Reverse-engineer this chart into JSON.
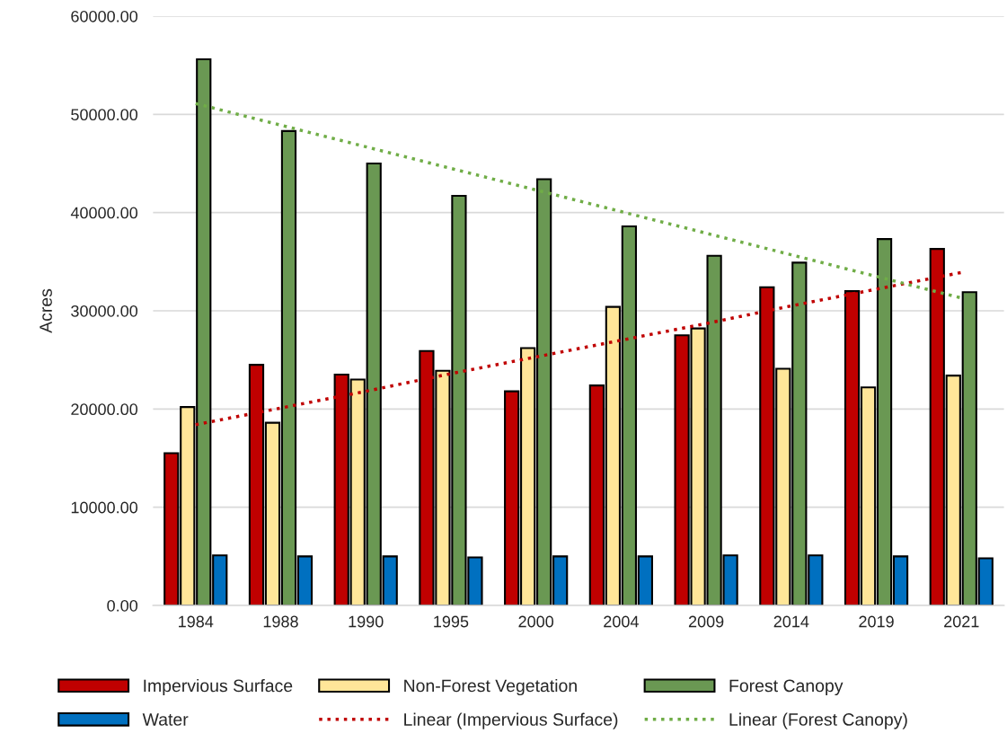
{
  "chart_data": {
    "type": "bar",
    "ylabel": "Acres",
    "categories": [
      "1984",
      "1988",
      "1990",
      "1995",
      "2000",
      "2004",
      "2009",
      "2014",
      "2019",
      "2021"
    ],
    "series": [
      {
        "name": "Impervious Surface",
        "color": "#c00000",
        "values": [
          15500,
          24500,
          23500,
          25900,
          21800,
          22400,
          27500,
          32400,
          32000,
          36300
        ]
      },
      {
        "name": "Non-Forest Vegetation",
        "color": "#ffe699",
        "values": [
          20200,
          18600,
          23000,
          23900,
          26200,
          30400,
          28200,
          24100,
          22200,
          23400
        ]
      },
      {
        "name": "Forest Canopy",
        "color": "#6a9853",
        "values": [
          55600,
          48300,
          45000,
          41700,
          43400,
          38600,
          35600,
          34900,
          37300,
          31900
        ]
      },
      {
        "name": "Water",
        "color": "#0070c0",
        "values": [
          5100,
          5000,
          5000,
          4900,
          5000,
          5000,
          5100,
          5100,
          5000,
          4800
        ]
      },
      {
        "name": "Linear (Impervious Surface)",
        "type": "line",
        "color": "#c00000",
        "line_style": "dotted",
        "values": [
          18400,
          20100,
          21800,
          23600,
          25300,
          27000,
          28700,
          30500,
          32200,
          33900
        ]
      },
      {
        "name": "Linear (Forest Canopy)",
        "type": "line",
        "color": "#70ad47",
        "line_style": "dotted",
        "values": [
          51100,
          48900,
          46700,
          44500,
          42300,
          40100,
          37900,
          35700,
          33500,
          31300
        ]
      }
    ],
    "ylim": [
      0,
      60000
    ],
    "yticks": [
      {
        "value": 0,
        "label": "0.00"
      },
      {
        "value": 10000,
        "label": "10000.00"
      },
      {
        "value": 20000,
        "label": "20000.00"
      },
      {
        "value": 30000,
        "label": "30000.00"
      },
      {
        "value": 40000,
        "label": "40000.00"
      },
      {
        "value": 50000,
        "label": "50000.00"
      },
      {
        "value": 60000,
        "label": "60000.00"
      }
    ],
    "grid": "y",
    "legend": "bottom"
  }
}
